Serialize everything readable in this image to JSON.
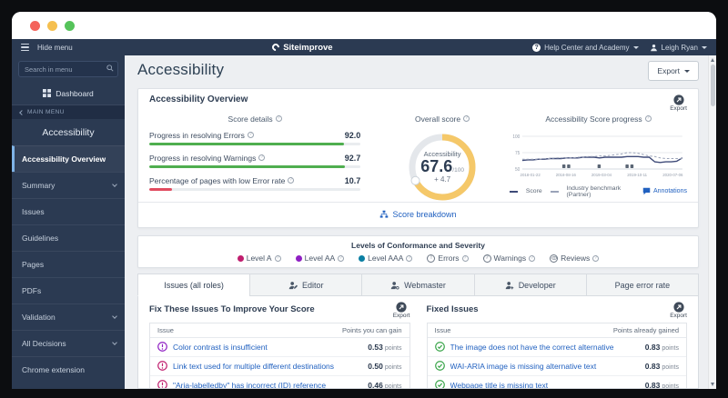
{
  "navbar": {
    "hide_menu": "Hide menu",
    "brand": "Siteimprove",
    "help": "Help Center and Academy",
    "user": "Leigh Ryan"
  },
  "sidebar": {
    "search_placeholder": "Search in menu",
    "dashboard": "Dashboard",
    "back_label": "MAIN MENU",
    "section_title": "Accessibility",
    "items": [
      {
        "label": "Accessibility Overview",
        "selected": true
      },
      {
        "label": "Summary",
        "expandable": true
      },
      {
        "label": "Issues"
      },
      {
        "label": "Guidelines"
      },
      {
        "label": "Pages"
      },
      {
        "label": "PDFs"
      },
      {
        "label": "Validation",
        "expandable": true
      },
      {
        "label": "All Decisions",
        "expandable": true
      },
      {
        "label": "Chrome extension"
      }
    ]
  },
  "page": {
    "title": "Accessibility",
    "export_button": "Export"
  },
  "overview": {
    "card_title": "Accessibility Overview",
    "export_label": "Export",
    "score_details": {
      "title": "Score details",
      "rows": [
        {
          "label": "Progress in resolving Errors",
          "value": "92.0",
          "max": "/100",
          "pct": 92,
          "color": "#4fae4f"
        },
        {
          "label": "Progress in resolving Warnings",
          "value": "92.7",
          "max": "/100",
          "pct": 92.7,
          "color": "#4fae4f"
        },
        {
          "label": "Percentage of pages with low Error rate",
          "value": "10.7",
          "max": "/100",
          "pct": 10.7,
          "color": "#e14b5f"
        }
      ]
    },
    "overall": {
      "title": "Overall score",
      "gauge_label": "Accessibility",
      "value": "67.6",
      "value_num": 67.6,
      "max": "/100",
      "delta": "+ 4.7",
      "ring_color": "#f5c869"
    },
    "breakdown_link": "Score breakdown"
  },
  "chart_data": {
    "type": "line",
    "title": "Accessibility Score progress",
    "ylim": [
      50,
      100
    ],
    "yticks": [
      50,
      75,
      100
    ],
    "x_tick_labels": [
      "2018-01-22",
      "2018-08-16",
      "2019-03-04",
      "2019-10-11",
      "2020-07-06"
    ],
    "grid": true,
    "legend_position": "bottom",
    "series": [
      {
        "name": "Score",
        "style": "solid",
        "color": "#3e4a78",
        "values": [
          63,
          64,
          64,
          65,
          65,
          66,
          66,
          66,
          67,
          67,
          67,
          68,
          68,
          68,
          67,
          68,
          68,
          68,
          68,
          69,
          69,
          69,
          68,
          68,
          61,
          60,
          61,
          61,
          62,
          67
        ]
      },
      {
        "name": "Industry benchmark (Partner)",
        "style": "dashed",
        "color": "#9aa3b8",
        "values": [
          65,
          65,
          65,
          65,
          66,
          66,
          67,
          67,
          67,
          67,
          68,
          68,
          69,
          69,
          70,
          70,
          71,
          72,
          73,
          75,
          75,
          74,
          72,
          70,
          69,
          67,
          66,
          66,
          66,
          66
        ]
      }
    ],
    "annotation_positions": [
      0.26,
      0.29,
      0.48,
      0.655,
      0.685
    ],
    "annotations_label": "Annotations"
  },
  "conformance": {
    "title": "Levels of Conformance and Severity",
    "items": [
      {
        "label": "Level A",
        "color": "#c01e6e"
      },
      {
        "label": "Level AA",
        "color": "#8f1fc3"
      },
      {
        "label": "Level AAA",
        "color": "#0b7fa3"
      },
      {
        "label": "Errors"
      },
      {
        "label": "Warnings"
      },
      {
        "label": "Reviews"
      }
    ]
  },
  "tabs": [
    {
      "label": "Issues (all roles)",
      "active": true
    },
    {
      "label": "Editor"
    },
    {
      "label": "Webmaster"
    },
    {
      "label": "Developer"
    },
    {
      "label": "Page error rate"
    }
  ],
  "fix_issues": {
    "title": "Fix These Issues To Improve Your Score",
    "export_label": "Export",
    "columns": {
      "issue": "Issue",
      "points": "Points you can gain"
    },
    "points_unit": "points",
    "rows": [
      {
        "text": "Color contrast is insufficient",
        "points": "0.53",
        "color": "#8f1fc3"
      },
      {
        "text": "Link text used for multiple different destinations",
        "points": "0.50",
        "color": "#c01e6e"
      },
      {
        "text": "\"Aria-labelledby\" has incorrect (ID) reference",
        "points": "0.46",
        "color": "#c01e6e"
      },
      {
        "partial": true,
        "color": "#8f1fc3"
      }
    ]
  },
  "fixed_issues": {
    "title": "Fixed Issues",
    "export_label": "Export",
    "columns": {
      "issue": "Issue",
      "points": "Points already gained"
    },
    "points_unit": "points",
    "rows": [
      {
        "text": "The image does not have the correct alternative",
        "points": "0.83",
        "color": "#3aa54a"
      },
      {
        "text": "WAI-ARIA image is missing alternative text",
        "points": "0.83",
        "color": "#3aa54a"
      },
      {
        "text": "Webpage title is missing text",
        "points": "0.83",
        "color": "#3aa54a"
      },
      {
        "partial": true,
        "color": "#3aa54a"
      }
    ]
  }
}
